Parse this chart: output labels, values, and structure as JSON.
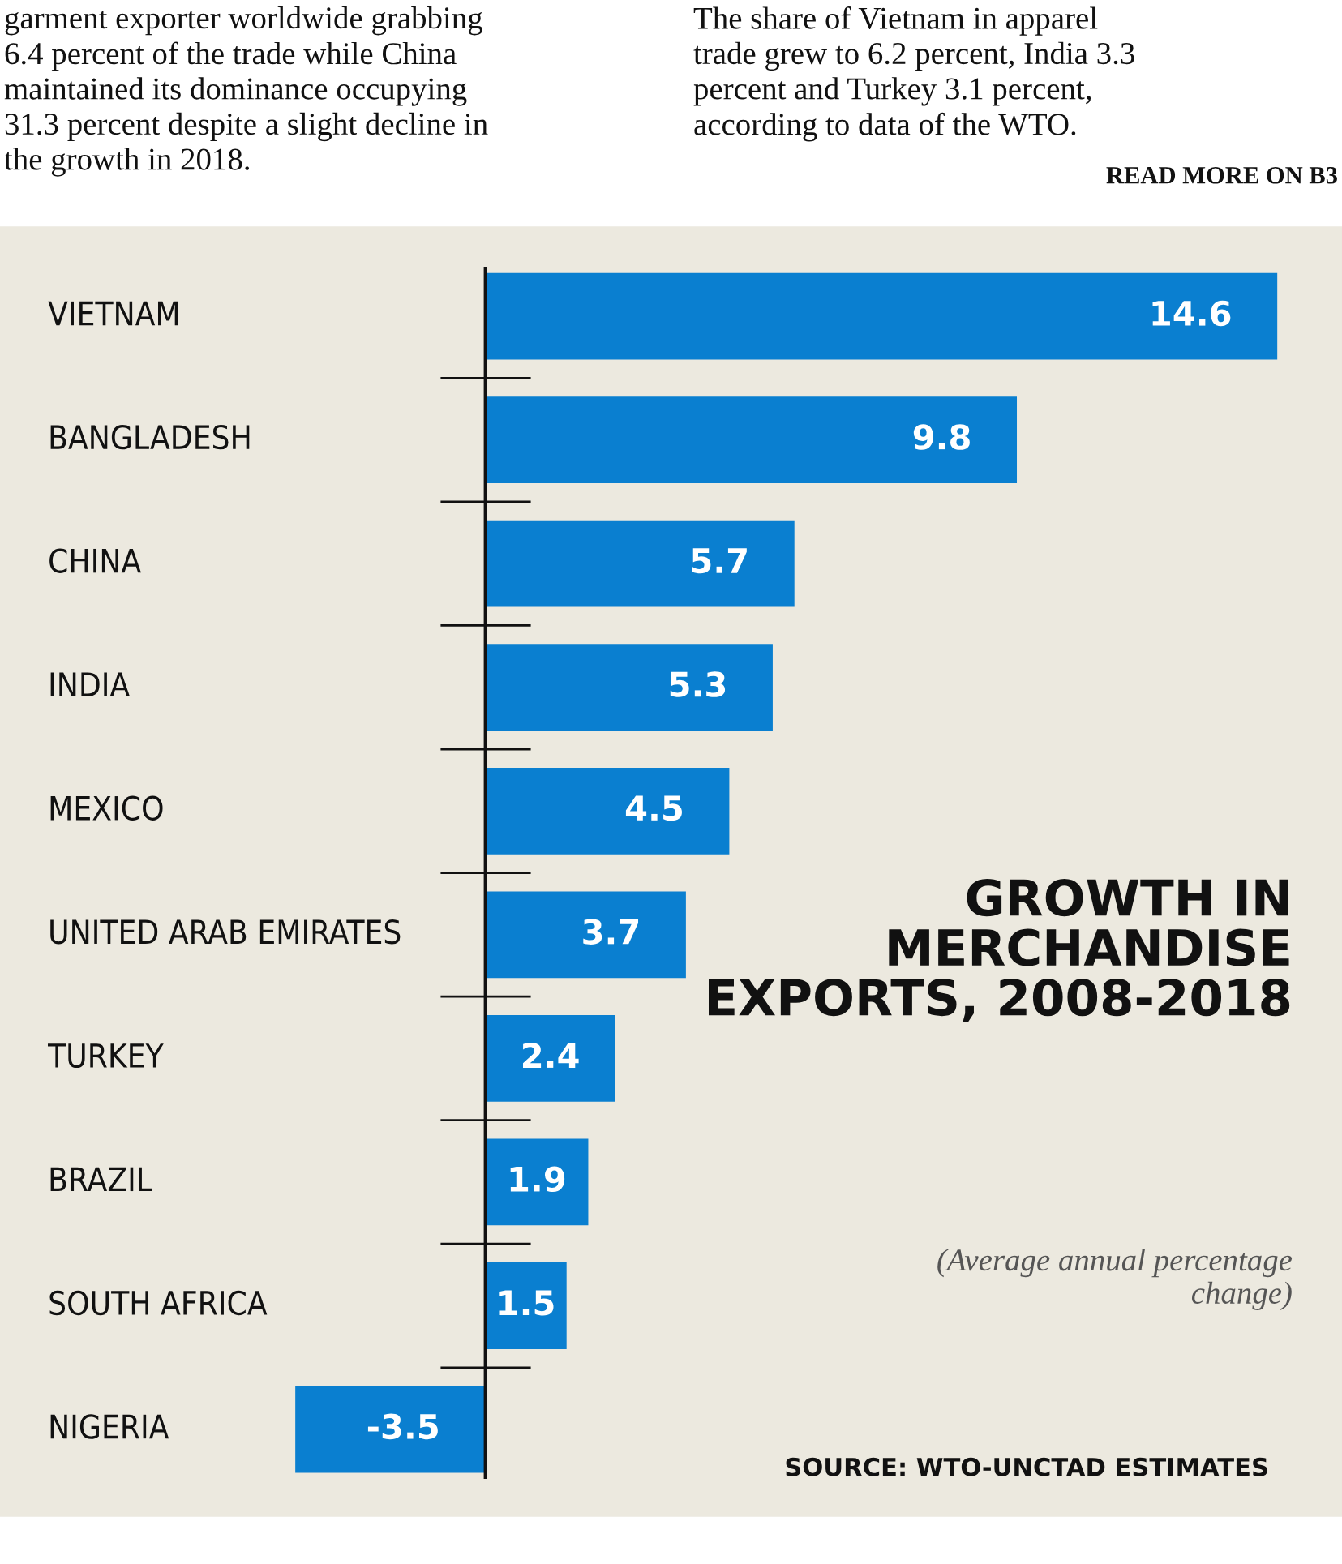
{
  "chart_data": {
    "type": "bar",
    "orientation": "horizontal",
    "title": "GROWTH IN\nMERCHANDISE\nEXPORTS, 2008-2018",
    "subtitle": "(Average annual percentage\nchange)",
    "categories": [
      "VIETNAM",
      "BANGLADESH",
      "CHINA",
      "INDIA",
      "MEXICO",
      "UNITED ARAB EMIRATES",
      "TURKEY",
      "BRAZIL",
      "SOUTH AFRICA",
      "NIGERIA"
    ],
    "values": [
      14.6,
      9.8,
      5.7,
      5.3,
      4.5,
      3.7,
      2.4,
      1.9,
      1.5,
      -3.5
    ],
    "color": "#0a7fd0",
    "data_labels": true,
    "tick_labels": "y",
    "annotations": [
      "garment exporter worldwide grabbing\n6.4 percent of the trade while China\nmaintained its dominance occupying\n31.3 percent despite a slight decline in\nthe growth in 2018.",
      "The share of Vietnam in apparel\ntrade grew to 6.2 percent, India 3.3\npercent and Turkey 3.1 percent,\naccording to data of the WTO.",
      "READ MORE ON B3",
      "SOURCE: WTO-UNCTAD ESTIMATES"
    ]
  }
}
